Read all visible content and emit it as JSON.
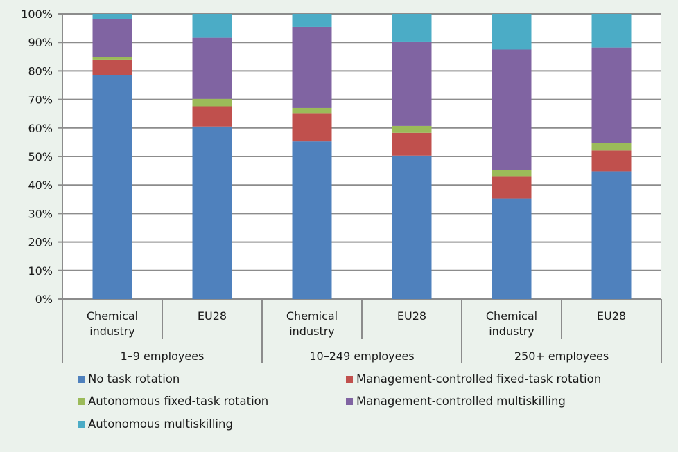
{
  "chart_data": {
    "type": "bar",
    "stacked": true,
    "title": "",
    "xlabel": "",
    "ylabel": "",
    "ylim": [
      0,
      100
    ],
    "yticks": [
      "0%",
      "10%",
      "20%",
      "30%",
      "40%",
      "50%",
      "60%",
      "70%",
      "80%",
      "90%",
      "100%"
    ],
    "grid": true,
    "groups": [
      {
        "label": "1–9 employees",
        "categories": [
          "Chemical industry",
          "EU28"
        ]
      },
      {
        "label": "10–249 employees",
        "categories": [
          "Chemical industry",
          "EU28"
        ]
      },
      {
        "label": "250+ employees",
        "categories": [
          "Chemical industry",
          "EU28"
        ]
      }
    ],
    "categories": [
      {
        "line1": "Chemical",
        "line2": "industry"
      },
      {
        "line1": "EU28",
        "line2": ""
      },
      {
        "line1": "Chemical",
        "line2": "industry"
      },
      {
        "line1": "EU28",
        "line2": ""
      },
      {
        "line1": "Chemical",
        "line2": "industry"
      },
      {
        "line1": "EU28",
        "line2": ""
      }
    ],
    "series": [
      {
        "name": "No task rotation",
        "color": "#4f81bd",
        "values": [
          78.5,
          60.5,
          55.3,
          50.3,
          35.3,
          44.8
        ]
      },
      {
        "name": "Management-controlled fixed-task rotation",
        "color": "#c0504d",
        "values": [
          5.5,
          7.1,
          9.9,
          8.0,
          7.8,
          7.3
        ]
      },
      {
        "name": "Autonomous fixed-task rotation",
        "color": "#9bbb59",
        "values": [
          0.9,
          2.6,
          1.8,
          2.4,
          2.2,
          2.6
        ]
      },
      {
        "name": "Management-controlled multiskilling",
        "color": "#8064a2",
        "values": [
          13.3,
          21.4,
          28.4,
          29.6,
          42.2,
          33.5
        ]
      },
      {
        "name": "Autonomous multiskilling",
        "color": "#4bacc6",
        "values": [
          1.8,
          8.4,
          4.6,
          9.7,
          12.5,
          11.8
        ]
      }
    ],
    "legend_position": "bottom"
  }
}
